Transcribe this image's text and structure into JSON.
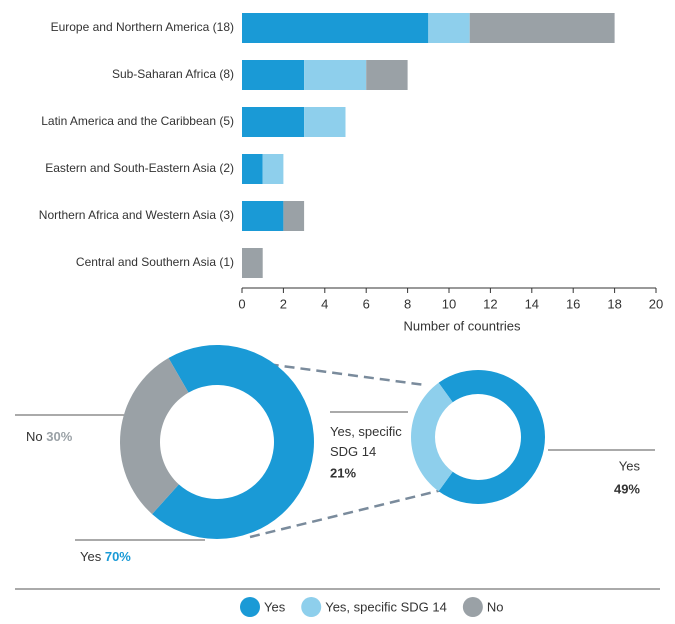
{
  "chart_data": [
    {
      "type": "bar",
      "orientation": "horizontal",
      "categories": [
        "Europe and Northern America (18)",
        "Sub-Saharan Africa (8)",
        "Latin America and the Caribbean (5)",
        "Eastern and South-Eastern Asia (2)",
        "Northern Africa and Western Asia (3)",
        "Central and Southern Asia (1)"
      ],
      "series": [
        {
          "name": "Yes",
          "color": "#1a9ad6",
          "values": [
            9,
            3,
            3,
            1,
            2,
            0
          ]
        },
        {
          "name": "Yes, specific SDG 14",
          "color": "#8ecfec",
          "values": [
            2,
            3,
            2,
            1,
            0,
            0
          ]
        },
        {
          "name": "No",
          "color": "#9aa1a6",
          "values": [
            7,
            2,
            0,
            0,
            1,
            1
          ]
        }
      ],
      "xlim": [
        0,
        20
      ],
      "xticks": [
        0,
        2,
        4,
        6,
        8,
        10,
        12,
        14,
        16,
        18,
        20
      ],
      "xlabel": "Number of countries",
      "stacked": true,
      "legend": "bottom"
    },
    {
      "type": "pie",
      "donut": true,
      "labels": [
        "Yes",
        "No"
      ],
      "values": [
        70,
        30
      ],
      "value_labels": [
        "70%",
        "30%"
      ],
      "colors": [
        "#1a9ad6",
        "#9aa1a6"
      ]
    },
    {
      "type": "pie",
      "donut": true,
      "labels": [
        "Yes",
        "Yes, specific SDG 14"
      ],
      "values": [
        49,
        21
      ],
      "value_labels": [
        "49%",
        "21%"
      ],
      "colors": [
        "#1a9ad6",
        "#8ecfec"
      ]
    }
  ]
}
